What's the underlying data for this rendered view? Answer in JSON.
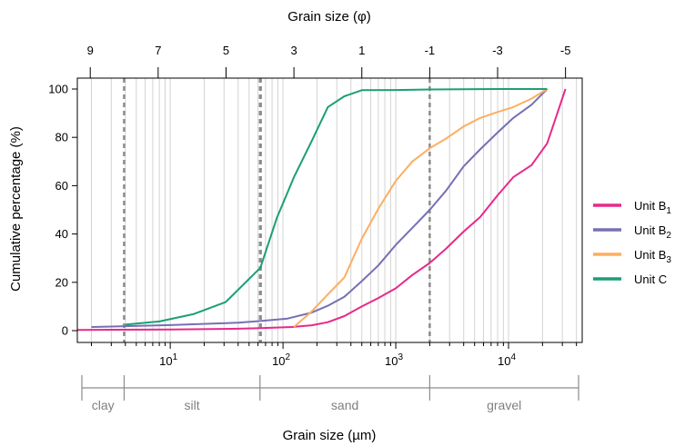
{
  "chart_data": {
    "type": "line",
    "x_scale": "log10",
    "xlim_um": [
      1.5,
      45000
    ],
    "ylim": [
      0,
      100
    ],
    "grid": "vertical minor log lines",
    "legend_position": "right",
    "xlabel": "Grain size (µm)",
    "top_xlabel": "Grain size (φ)",
    "ylabel": "Cumulative percentage (%)",
    "y_ticks": [
      0,
      20,
      40,
      60,
      80,
      100
    ],
    "x_ticks_bottom": [
      {
        "value": 10,
        "base": "10",
        "exp": "1"
      },
      {
        "value": 100,
        "base": "10",
        "exp": "2"
      },
      {
        "value": 1000,
        "base": "10",
        "exp": "3"
      },
      {
        "value": 10000,
        "base": "10",
        "exp": "4"
      }
    ],
    "x_ticks_top_phi": [
      "9",
      "7",
      "5",
      "3",
      "1",
      "-1",
      "-3",
      "-5"
    ],
    "boundaries_um": [
      3.9,
      62.5,
      63.5,
      2000
    ],
    "classes": [
      {
        "label": "clay",
        "from": 1.5,
        "to": 3.9
      },
      {
        "label": "silt",
        "from": 3.9,
        "to": 62.5
      },
      {
        "label": "sand",
        "from": 62.5,
        "to": 2000
      },
      {
        "label": "gravel",
        "from": 2000,
        "to": 45000
      }
    ],
    "series": [
      {
        "base": "Unit B",
        "sub": "1",
        "color": "#e7298a",
        "x": [
          1.5,
          10,
          40,
          63,
          120,
          180,
          250,
          350,
          500,
          700,
          1000,
          1400,
          2000,
          2800,
          4000,
          5600,
          8000,
          11000,
          16000,
          22000,
          32000
        ],
        "y": [
          0.3,
          0.5,
          0.8,
          1.0,
          1.5,
          2.2,
          3.5,
          6,
          10,
          13.5,
          17.5,
          23,
          28,
          34,
          41,
          47,
          56,
          63.5,
          68.5,
          77.5,
          100
        ]
      },
      {
        "base": "Unit B",
        "sub": "2",
        "color": "#7570b3",
        "x": [
          2,
          10,
          40,
          63,
          110,
          180,
          250,
          350,
          500,
          700,
          1000,
          1400,
          2000,
          2800,
          4000,
          5600,
          8000,
          11000,
          16000,
          22000
        ],
        "y": [
          1.5,
          2.3,
          3.3,
          4,
          5,
          7.5,
          10.3,
          14,
          20.5,
          27,
          35.5,
          42.5,
          50,
          58,
          68,
          75,
          82,
          88,
          93.5,
          100
        ]
      },
      {
        "base": "Unit B",
        "sub": "3",
        "color": "#fdae61",
        "x": [
          125,
          180,
          250,
          350,
          500,
          700,
          1000,
          1400,
          2000,
          2800,
          4000,
          5600,
          8000,
          11000,
          16000,
          22000
        ],
        "y": [
          1.5,
          8,
          15,
          22,
          38,
          50.5,
          62,
          70,
          75.5,
          79.5,
          84.5,
          88,
          90.5,
          92.5,
          96,
          100
        ]
      },
      {
        "base": "Unit C",
        "sub": "",
        "color": "#1b9e77",
        "x": [
          4,
          8,
          16,
          31,
          63,
          88,
          125,
          180,
          250,
          350,
          500,
          1000,
          2000,
          4000,
          8000,
          22000
        ],
        "y": [
          2.5,
          3.8,
          6.8,
          11.8,
          26,
          46.5,
          63.5,
          78.5,
          92.5,
          97,
          99.5,
          99.6,
          99.8,
          99.9,
          100,
          100
        ]
      }
    ]
  }
}
